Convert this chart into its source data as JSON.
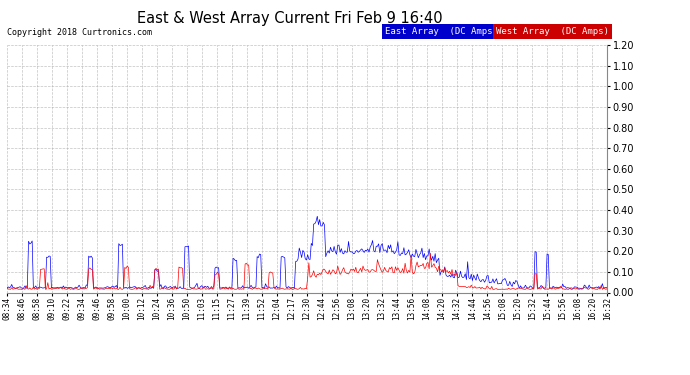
{
  "title": "East & West Array Current Fri Feb 9 16:40",
  "copyright": "Copyright 2018 Curtronics.com",
  "east_label": "East Array  (DC Amps)",
  "west_label": "West Array  (DC Amps)",
  "east_color": "#0000ff",
  "west_color": "#ff0000",
  "east_bg": "#0000cc",
  "west_bg": "#cc0000",
  "ylim": [
    0.0,
    1.2
  ],
  "ytick_step": 0.1,
  "background_color": "#ffffff",
  "plot_bg": "#ffffff",
  "grid_color": "#aaaaaa",
  "x_tick_labels": [
    "08:34",
    "08:46",
    "08:58",
    "09:10",
    "09:22",
    "09:34",
    "09:46",
    "09:58",
    "10:00",
    "10:12",
    "10:24",
    "10:36",
    "10:50",
    "11:03",
    "11:15",
    "11:27",
    "11:39",
    "11:52",
    "12:04",
    "12:17",
    "12:30",
    "12:44",
    "12:56",
    "13:08",
    "13:20",
    "13:32",
    "13:44",
    "13:56",
    "14:08",
    "14:20",
    "14:32",
    "14:44",
    "14:56",
    "15:08",
    "15:20",
    "15:32",
    "15:44",
    "15:56",
    "16:08",
    "16:20",
    "16:32"
  ],
  "num_points": 500,
  "seed": 7
}
